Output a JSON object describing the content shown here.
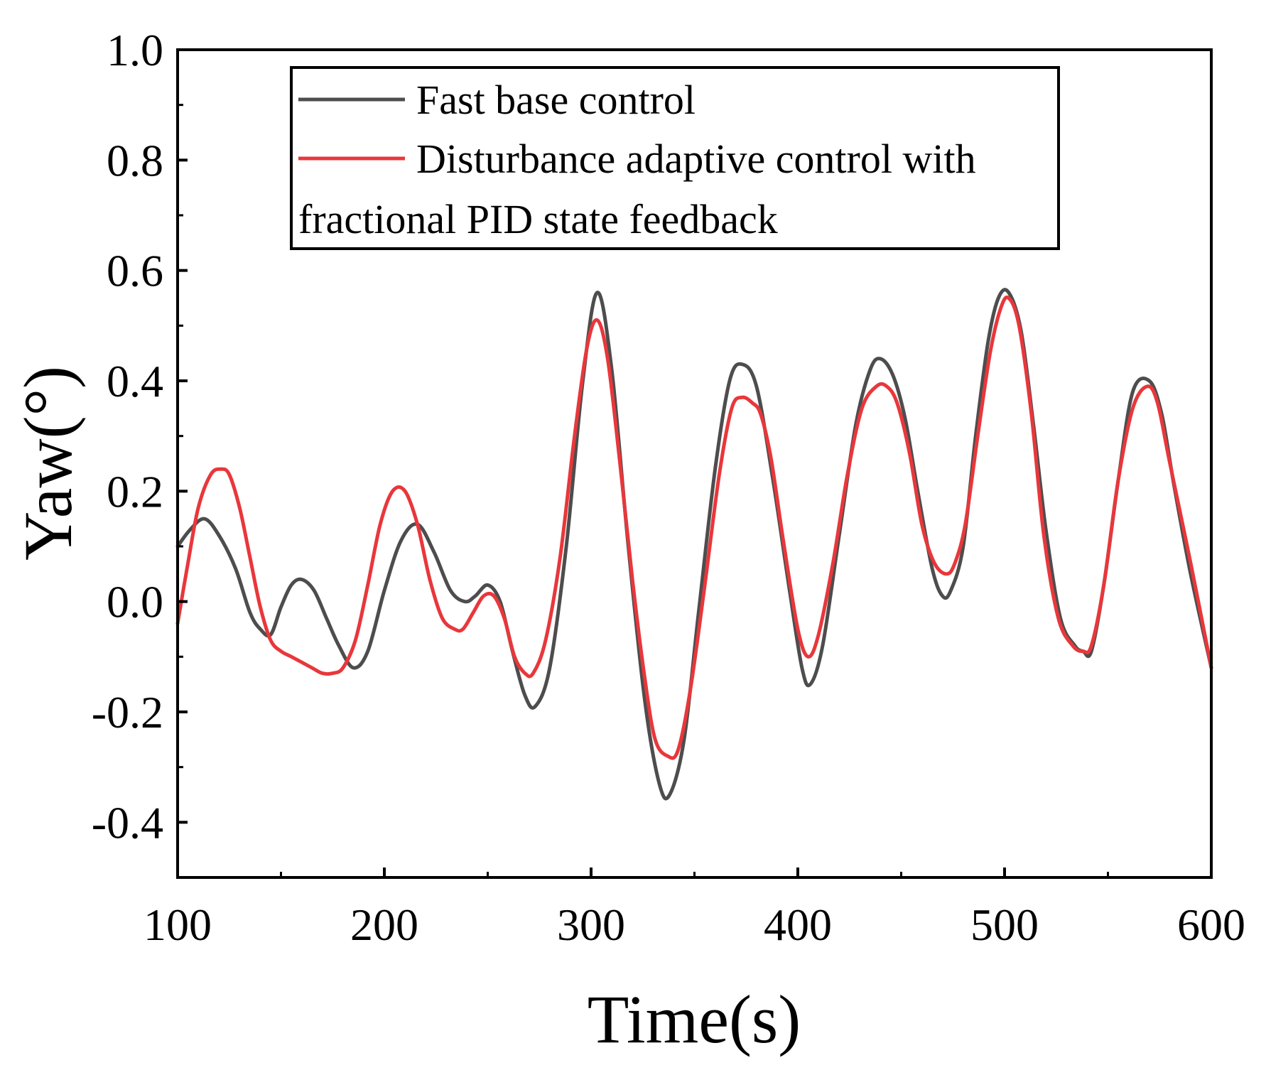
{
  "chart_data": {
    "type": "line",
    "title": "",
    "xlabel": "Time(s)",
    "ylabel": "Yaw(°)",
    "xlim": [
      100,
      600
    ],
    "ylim": [
      -0.5,
      1.0
    ],
    "xticks": [
      100,
      200,
      300,
      400,
      500,
      600
    ],
    "xtick_labels": [
      "100",
      "200",
      "300",
      "400",
      "500",
      "600"
    ],
    "yticks": [
      -0.4,
      -0.2,
      0.0,
      0.2,
      0.4,
      0.6,
      0.8,
      1.0
    ],
    "ytick_labels": [
      "-0.4",
      "-0.2",
      "0.0",
      "0.2",
      "0.4",
      "0.6",
      "0.8",
      "1.0"
    ],
    "grid": false,
    "legend_position": "top-center",
    "legend_lines": [
      "Fast base control",
      "Disturbance adaptive control with",
      "fractional PID state feedback"
    ],
    "series": [
      {
        "name": "Fast base control",
        "color": "#4d4d4d",
        "x": [
          100,
          106,
          113,
          120,
          128,
          135,
          140,
          145,
          150,
          155,
          160,
          166,
          172,
          178,
          185,
          192,
          200,
          208,
          216,
          224,
          232,
          239,
          244,
          250,
          256,
          262,
          268,
          273,
          280,
          288,
          296,
          303,
          310,
          318,
          326,
          333,
          338,
          345,
          352,
          360,
          367,
          373,
          380,
          388,
          396,
          402,
          406,
          412,
          420,
          428,
          435,
          440,
          446,
          452,
          458,
          465,
          470,
          474,
          480,
          486,
          492,
          497,
          502,
          508,
          514,
          520,
          527,
          534,
          538,
          542,
          548,
          555,
          562,
          570,
          576,
          582,
          590,
          600
        ],
        "y": [
          0.1,
          0.13,
          0.15,
          0.12,
          0.06,
          -0.02,
          -0.05,
          -0.06,
          -0.01,
          0.03,
          0.04,
          0.02,
          -0.03,
          -0.08,
          -0.12,
          -0.09,
          0.02,
          0.11,
          0.14,
          0.09,
          0.02,
          0.0,
          0.01,
          0.03,
          0.0,
          -0.09,
          -0.17,
          -0.19,
          -0.12,
          0.1,
          0.4,
          0.56,
          0.42,
          0.1,
          -0.18,
          -0.33,
          -0.35,
          -0.25,
          -0.02,
          0.24,
          0.4,
          0.43,
          0.39,
          0.22,
          0.02,
          -0.12,
          -0.15,
          -0.08,
          0.12,
          0.32,
          0.42,
          0.44,
          0.41,
          0.33,
          0.2,
          0.06,
          0.01,
          0.02,
          0.1,
          0.3,
          0.47,
          0.55,
          0.56,
          0.49,
          0.32,
          0.13,
          -0.03,
          -0.08,
          -0.09,
          -0.09,
          0.03,
          0.22,
          0.38,
          0.4,
          0.34,
          0.21,
          0.05,
          -0.12
        ]
      },
      {
        "name": "Disturbance adaptive control with fractional PID state feedback",
        "color": "#e8373b",
        "x": [
          100,
          105,
          110,
          116,
          121,
          125,
          130,
          135,
          140,
          145,
          150,
          155,
          160,
          165,
          170,
          175,
          180,
          186,
          192,
          198,
          204,
          210,
          216,
          222,
          228,
          234,
          238,
          243,
          248,
          253,
          258,
          263,
          268,
          272,
          278,
          285,
          292,
          298,
          303,
          308,
          314,
          320,
          326,
          331,
          337,
          342,
          348,
          355,
          362,
          368,
          373,
          378,
          382,
          387,
          393,
          400,
          405,
          410,
          417,
          424,
          431,
          438,
          443,
          448,
          454,
          460,
          466,
          472,
          476,
          481,
          487,
          493,
          498,
          502,
          507,
          513,
          519,
          526,
          533,
          538,
          542,
          548,
          555,
          562,
          569,
          574,
          580,
          590,
          600
        ],
        "y": [
          -0.04,
          0.07,
          0.17,
          0.23,
          0.24,
          0.23,
          0.17,
          0.08,
          -0.01,
          -0.07,
          -0.09,
          -0.1,
          -0.11,
          -0.12,
          -0.13,
          -0.13,
          -0.12,
          -0.07,
          0.03,
          0.14,
          0.2,
          0.2,
          0.14,
          0.04,
          -0.03,
          -0.05,
          -0.05,
          -0.02,
          0.01,
          0.01,
          -0.03,
          -0.1,
          -0.13,
          -0.13,
          -0.07,
          0.08,
          0.3,
          0.46,
          0.51,
          0.44,
          0.25,
          0.04,
          -0.14,
          -0.25,
          -0.28,
          -0.27,
          -0.16,
          0.03,
          0.23,
          0.35,
          0.37,
          0.36,
          0.34,
          0.26,
          0.11,
          -0.05,
          -0.1,
          -0.06,
          0.07,
          0.23,
          0.35,
          0.39,
          0.39,
          0.36,
          0.27,
          0.14,
          0.07,
          0.05,
          0.07,
          0.14,
          0.3,
          0.45,
          0.53,
          0.55,
          0.5,
          0.34,
          0.12,
          -0.03,
          -0.08,
          -0.09,
          -0.08,
          0.03,
          0.22,
          0.35,
          0.39,
          0.36,
          0.25,
          0.07,
          -0.12
        ]
      }
    ]
  }
}
